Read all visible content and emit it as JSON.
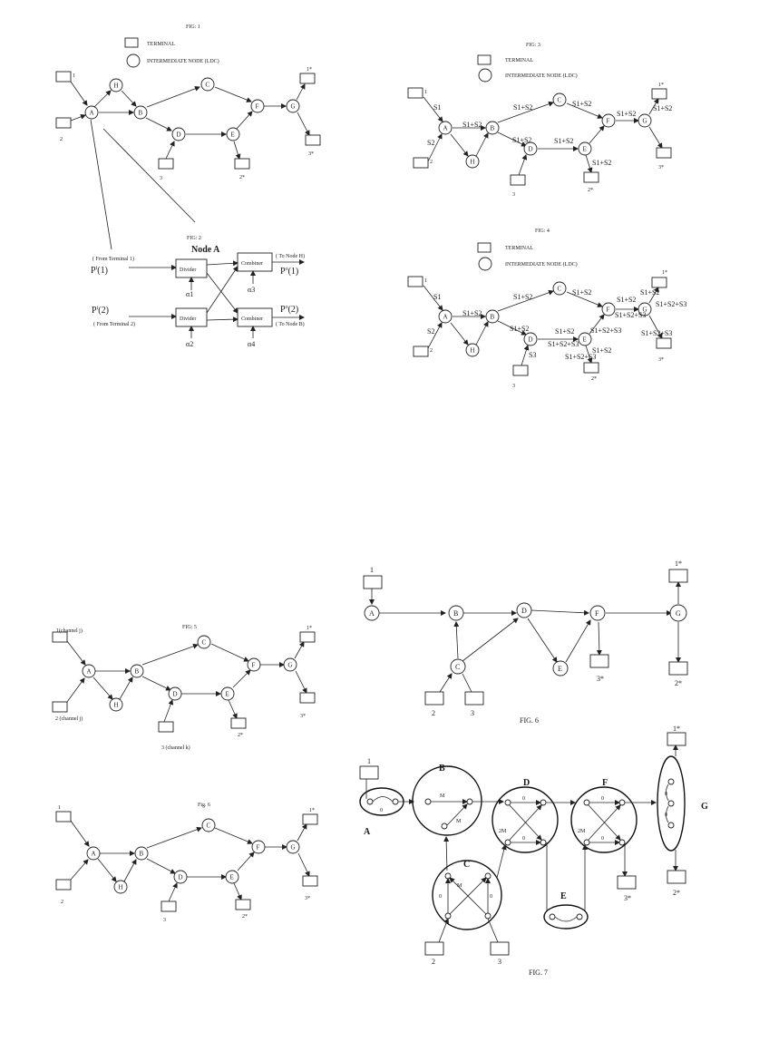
{
  "fig1": {
    "title": "FIG: 1",
    "legend_terminal": "TERMINAL",
    "legend_node": "INTERMEDIATE NODE (LDC)",
    "nodes": [
      "A",
      "H",
      "B",
      "C",
      "D",
      "E",
      "F",
      "G"
    ],
    "terminals": [
      "1",
      "2",
      "3",
      "2*",
      "1*",
      "3*"
    ]
  },
  "fig2": {
    "title": "FIG: 2",
    "heading": "Node A",
    "from_t1": "( From Terminal 1)",
    "from_t2": "( From Terminal 2)",
    "to_h": "( To Node H)",
    "to_b": "( To Node B)",
    "divider": "Divider",
    "combiner": "Combiner",
    "p_in_1": "P",
    "p_in_1_sup": "i",
    "p_in_1_arg": "(1)",
    "p_in_2": "P",
    "p_in_2_sup": "i",
    "p_in_2_arg": "(2)",
    "p_out_1": "P",
    "p_out_1_sup": "o",
    "p_out_1_arg": "(1)",
    "p_out_2": "P",
    "p_out_2_sup": "o",
    "p_out_2_arg": "(2)",
    "alphas": [
      "α1",
      "α2",
      "α3",
      "α4"
    ]
  },
  "fig3": {
    "title": "FIG: 3",
    "legend_terminal": "TERMINAL",
    "legend_node": "INTERMEDIATE NODE (LDC)",
    "nodes": [
      "A",
      "H",
      "B",
      "C",
      "D",
      "E",
      "F",
      "G"
    ],
    "terminals": [
      "1",
      "2",
      "3",
      "2*",
      "1*",
      "3*"
    ],
    "signals": [
      "S1",
      "S2",
      "S1+S2"
    ]
  },
  "fig4": {
    "title": "FIG: 4",
    "legend_terminal": "TERMINAL",
    "legend_node": "INTERMEDIATE NODE (LDC)",
    "nodes": [
      "A",
      "H",
      "B",
      "C",
      "D",
      "E",
      "F",
      "G"
    ],
    "terminals": [
      "1",
      "2",
      "3",
      "2*",
      "1*",
      "3*"
    ],
    "signals": [
      "S1",
      "S2",
      "S3",
      "S1+S2",
      "S1+S2+S3"
    ]
  },
  "fig5": {
    "title": "FIG: 5",
    "t1": "1(channel j)",
    "t2": "2 (channel j)",
    "t3": "3 (channel k)",
    "nodes": [
      "A",
      "H",
      "B",
      "C",
      "D",
      "E",
      "F",
      "G"
    ],
    "terminals": [
      "2*",
      "1*",
      "3*"
    ]
  },
  "fig6a": {
    "title": "Fig. 6",
    "nodes": [
      "A",
      "H",
      "B",
      "C",
      "D",
      "E",
      "F",
      "G"
    ],
    "terminals": [
      "1",
      "2",
      "3",
      "2*",
      "1*",
      "3*"
    ]
  },
  "fig6b": {
    "title": "FIG. 6",
    "nodes": [
      "A",
      "B",
      "C",
      "D",
      "E",
      "F",
      "G"
    ],
    "terminals": [
      "1",
      "2",
      "3",
      "3*",
      "1*",
      "2*"
    ]
  },
  "fig7": {
    "title": "FIG. 7",
    "nodes": [
      "A",
      "B",
      "C",
      "D",
      "E",
      "F",
      "G"
    ],
    "terminals": [
      "1",
      "2",
      "3",
      "3*",
      "1*",
      "2*"
    ],
    "labels": [
      "M",
      "2M",
      "0"
    ]
  }
}
